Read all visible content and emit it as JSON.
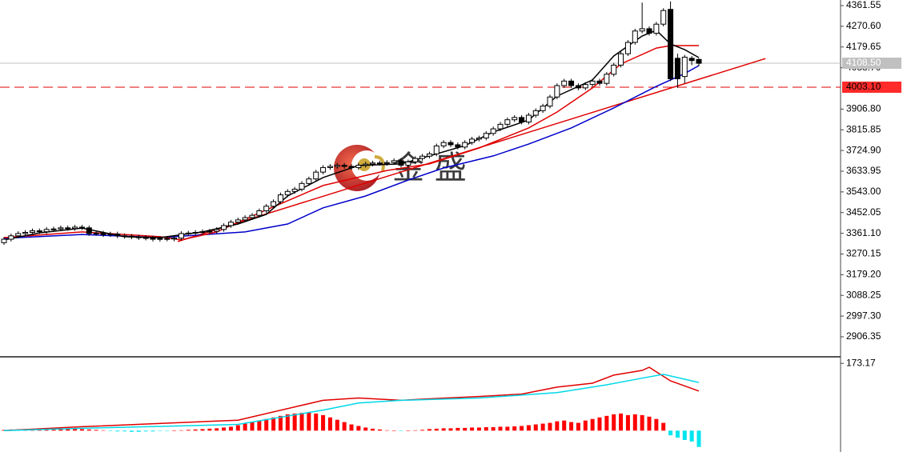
{
  "chart_data": [
    {
      "type": "candlestick",
      "ylim": [
        2818.4,
        4386.2
      ],
      "yticks": [
        4361.55,
        {
          "value": 4270.6,
          "label": "4270.60"
        },
        4179.65,
        {
          "value": 4088.7,
          "label": "4088.70"
        },
        {
          "value": 3906.8,
          "label": "3906.80"
        },
        3815.85,
        {
          "value": 3724.9,
          "label": "3724.90"
        },
        3633.95,
        {
          "value": 3543,
          "label": "3543.00"
        },
        3452.05,
        {
          "value": 3361.1,
          "label": "3361.10"
        },
        3270.15,
        {
          "value": 3179.2,
          "label": "3179.20"
        },
        3088.25,
        {
          "value": 2997.3,
          "label": "2997.30"
        },
        2906.35
      ],
      "open": [
        3320,
        3335,
        3350,
        3360,
        3365,
        3372,
        3368,
        3378,
        3380,
        3385,
        3382,
        3388,
        3385,
        3360,
        3362,
        3355,
        3358,
        3350,
        3348,
        3345,
        3342,
        3340,
        3335,
        3338,
        3336,
        3340,
        3360,
        3362,
        3365,
        3368,
        3370,
        3378,
        3395,
        3410,
        3420,
        3430,
        3440,
        3460,
        3480,
        3500,
        3530,
        3545,
        3555,
        3580,
        3600,
        3630,
        3650,
        3655,
        3660,
        3655,
        3650,
        3660,
        3665,
        3670,
        3668,
        3672,
        3680,
        3660,
        3675,
        3690,
        3700,
        3710,
        3745,
        3760,
        3750,
        3740,
        3760,
        3775,
        3780,
        3800,
        3820,
        3840,
        3860,
        3870,
        3850,
        3880,
        3900,
        3920,
        3960,
        4010,
        4030,
        4010,
        4000,
        4015,
        4030,
        4020,
        4060,
        4100,
        4150,
        4200,
        4250,
        4260,
        4240,
        4280,
        4345,
        4130,
        4050,
        4130,
        4125
      ],
      "high": [
        3345,
        3360,
        3370,
        3375,
        3382,
        3382,
        3388,
        3390,
        3395,
        3395,
        3398,
        3398,
        3395,
        3372,
        3372,
        3368,
        3368,
        3360,
        3358,
        3355,
        3352,
        3350,
        3348,
        3348,
        3350,
        3370,
        3372,
        3375,
        3378,
        3380,
        3388,
        3405,
        3420,
        3430,
        3440,
        3450,
        3470,
        3490,
        3510,
        3540,
        3555,
        3565,
        3590,
        3610,
        3640,
        3660,
        3665,
        3670,
        3670,
        3665,
        3670,
        3675,
        3680,
        3680,
        3682,
        3690,
        3690,
        3685,
        3700,
        3710,
        3720,
        3755,
        3770,
        3770,
        3760,
        3770,
        3785,
        3790,
        3810,
        3830,
        3850,
        3870,
        3880,
        3880,
        3890,
        3910,
        3930,
        3970,
        4020,
        4040,
        4040,
        4020,
        4025,
        4040,
        4040,
        4070,
        4110,
        4160,
        4210,
        4260,
        4375,
        4270,
        4290,
        4350,
        4380,
        4150,
        4145,
        4140,
        4130
      ],
      "low": [
        3310,
        3325,
        3340,
        3350,
        3355,
        3358,
        3358,
        3368,
        3370,
        3372,
        3372,
        3375,
        3350,
        3350,
        3345,
        3345,
        3340,
        3338,
        3335,
        3332,
        3330,
        3325,
        3325,
        3326,
        3326,
        3330,
        3350,
        3352,
        3355,
        3358,
        3360,
        3368,
        3385,
        3400,
        3410,
        3420,
        3430,
        3450,
        3470,
        3490,
        3520,
        3535,
        3545,
        3570,
        3590,
        3620,
        3640,
        3645,
        3645,
        3640,
        3640,
        3650,
        3655,
        3658,
        3658,
        3662,
        3650,
        3650,
        3665,
        3680,
        3690,
        3700,
        3735,
        3740,
        3730,
        3730,
        3750,
        3765,
        3770,
        3790,
        3810,
        3830,
        3850,
        3840,
        3840,
        3870,
        3890,
        3910,
        3950,
        4000,
        4000,
        3990,
        3990,
        4005,
        4010,
        4010,
        4050,
        4090,
        4140,
        4190,
        4240,
        4230,
        4230,
        4270,
        4030,
        4000,
        4020,
        4100,
        4095
      ],
      "close": [
        3335,
        3350,
        3360,
        3365,
        3372,
        3368,
        3378,
        3380,
        3385,
        3382,
        3388,
        3385,
        3360,
        3362,
        3355,
        3358,
        3350,
        3348,
        3345,
        3342,
        3340,
        3335,
        3338,
        3336,
        3340,
        3360,
        3362,
        3365,
        3368,
        3370,
        3378,
        3395,
        3410,
        3420,
        3430,
        3440,
        3460,
        3480,
        3500,
        3530,
        3545,
        3555,
        3580,
        3600,
        3630,
        3650,
        3655,
        3660,
        3655,
        3650,
        3660,
        3665,
        3670,
        3668,
        3672,
        3680,
        3660,
        3675,
        3690,
        3700,
        3710,
        3745,
        3760,
        3750,
        3740,
        3760,
        3775,
        3780,
        3800,
        3820,
        3840,
        3860,
        3870,
        3850,
        3880,
        3900,
        3920,
        3960,
        4010,
        4030,
        4010,
        4000,
        4015,
        4030,
        4020,
        4060,
        4100,
        4150,
        4200,
        4250,
        4260,
        4240,
        4280,
        4340,
        4040,
        4040,
        4135,
        4120,
        4108
      ],
      "up_color": "#ffffff",
      "down_color": "#000000",
      "series": [
        {
          "color": "#0000cc",
          "x": [
            0,
            11,
            22,
            34,
            40,
            45,
            51,
            57,
            62,
            69,
            74,
            80,
            86,
            92,
            96,
            98
          ],
          "values": [
            3339,
            3356,
            3342,
            3367,
            3402,
            3473,
            3525,
            3595,
            3648,
            3701,
            3753,
            3824,
            3912,
            4007,
            4063,
            4098
          ]
        },
        {
          "color": "#e00000",
          "x": [
            0,
            11,
            22,
            25,
            30,
            35,
            45,
            54,
            60,
            67,
            74,
            78,
            83,
            87,
            92,
            94,
            98
          ],
          "values": [
            3342,
            3367,
            3346,
            3332,
            3367,
            3437,
            3571,
            3637,
            3666,
            3736,
            3824,
            3894,
            4000,
            4105,
            4175,
            4186,
            4186
          ]
        },
        {
          "color": "#000000",
          "x": [
            0,
            5,
            11,
            17,
            22,
            28,
            33,
            37,
            40,
            45,
            50,
            56,
            60,
            65,
            69,
            74,
            78,
            83,
            86,
            90,
            92,
            94,
            96,
            98
          ],
          "values": [
            3332,
            3363,
            3384,
            3346,
            3342,
            3367,
            3402,
            3444,
            3525,
            3606,
            3659,
            3666,
            3701,
            3746,
            3806,
            3859,
            3964,
            4035,
            4140,
            4228,
            4253,
            4193,
            4168,
            4133
          ]
        }
      ],
      "trendline": {
        "color": "#e00000",
        "x": [
          24.5,
          107.4
        ],
        "values": [
          3325,
          4129
        ]
      },
      "current_price": {
        "value": 4108.5,
        "label": "4108.50"
      },
      "alert_level": {
        "value": 4003.1,
        "label": "4003.10"
      },
      "watermark": "金 盛"
    },
    {
      "type": "macd",
      "ylim": [
        -55,
        188
      ],
      "yticks": [
        173.17
      ],
      "histogram": {
        "up_color": "#ff0000",
        "down_color": "#00e5ee",
        "values": [
          2,
          3,
          3,
          4,
          4,
          5,
          5,
          5,
          6,
          6,
          5,
          4,
          3,
          2,
          1,
          -1,
          -2,
          -2,
          -3,
          -3,
          -2,
          -2,
          -1,
          -1,
          0,
          1,
          2,
          3,
          4,
          5,
          6,
          8,
          10,
          14,
          18,
          22,
          26,
          30,
          34,
          38,
          42,
          44,
          46,
          46,
          44,
          40,
          34,
          28,
          22,
          16,
          12,
          8,
          5,
          3,
          1,
          0,
          -1,
          0,
          1,
          2,
          4,
          5,
          6,
          6,
          7,
          7,
          8,
          8,
          9,
          9,
          10,
          10,
          11,
          12,
          14,
          16,
          18,
          20,
          24,
          26,
          22,
          20,
          26,
          30,
          34,
          38,
          42,
          44,
          40,
          42,
          40,
          36,
          30,
          20,
          -12,
          -18,
          -24,
          -28,
          -42
        ]
      },
      "series": [
        {
          "color": "#e00000",
          "x": [
            0,
            11,
            33,
            45,
            50,
            56,
            60,
            67,
            73,
            78,
            83,
            86,
            90,
            91,
            94,
            98
          ],
          "values": [
            0,
            10,
            27,
            78,
            84,
            78,
            82,
            88,
            94,
            112,
            122,
            143,
            155,
            163,
            128,
            102
          ]
        },
        {
          "color": "#00d8e8",
          "x": [
            0,
            11,
            33,
            45,
            50,
            56,
            67,
            78,
            85,
            90,
            93,
            98
          ],
          "values": [
            0,
            6,
            16,
            53,
            71,
            78,
            84,
            98,
            118,
            135,
            145,
            124
          ]
        }
      ]
    }
  ]
}
